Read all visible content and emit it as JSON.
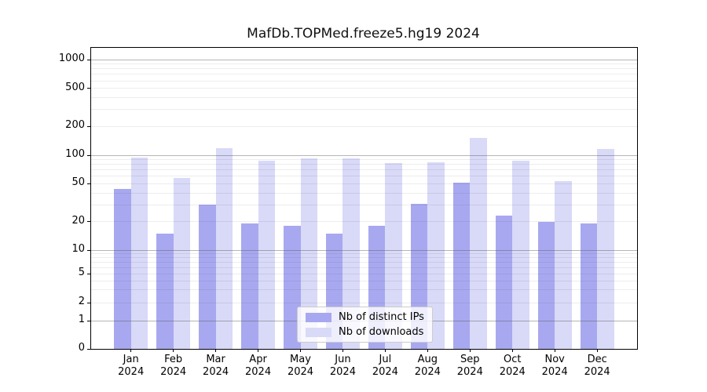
{
  "chart_data": {
    "type": "bar",
    "title": "MafDb.TOPMed.freeze5.hg19 2024",
    "xlabel": "",
    "ylabel": "",
    "categories": [
      "Jan",
      "Feb",
      "Mar",
      "Apr",
      "May",
      "Jun",
      "Jul",
      "Aug",
      "Sep",
      "Oct",
      "Nov",
      "Dec"
    ],
    "year_label": "2024",
    "series": [
      {
        "name": "Nb of distinct IPs",
        "color": "#a8a8f0",
        "values": [
          44,
          15,
          30,
          19,
          18,
          15,
          18,
          31,
          51,
          23,
          20,
          19
        ]
      },
      {
        "name": "Nb of downloads",
        "color": "#d9d9f8",
        "values": [
          94,
          58,
          119,
          88,
          92,
          92,
          82,
          84,
          151,
          87,
          53,
          117
        ]
      }
    ],
    "yscale": "symlog",
    "yticks": [
      0,
      1,
      2,
      5,
      10,
      20,
      50,
      100,
      200,
      500,
      1000
    ],
    "ylim": [
      0,
      1300
    ],
    "grid": true,
    "legend_position": "lower center inside axes"
  }
}
